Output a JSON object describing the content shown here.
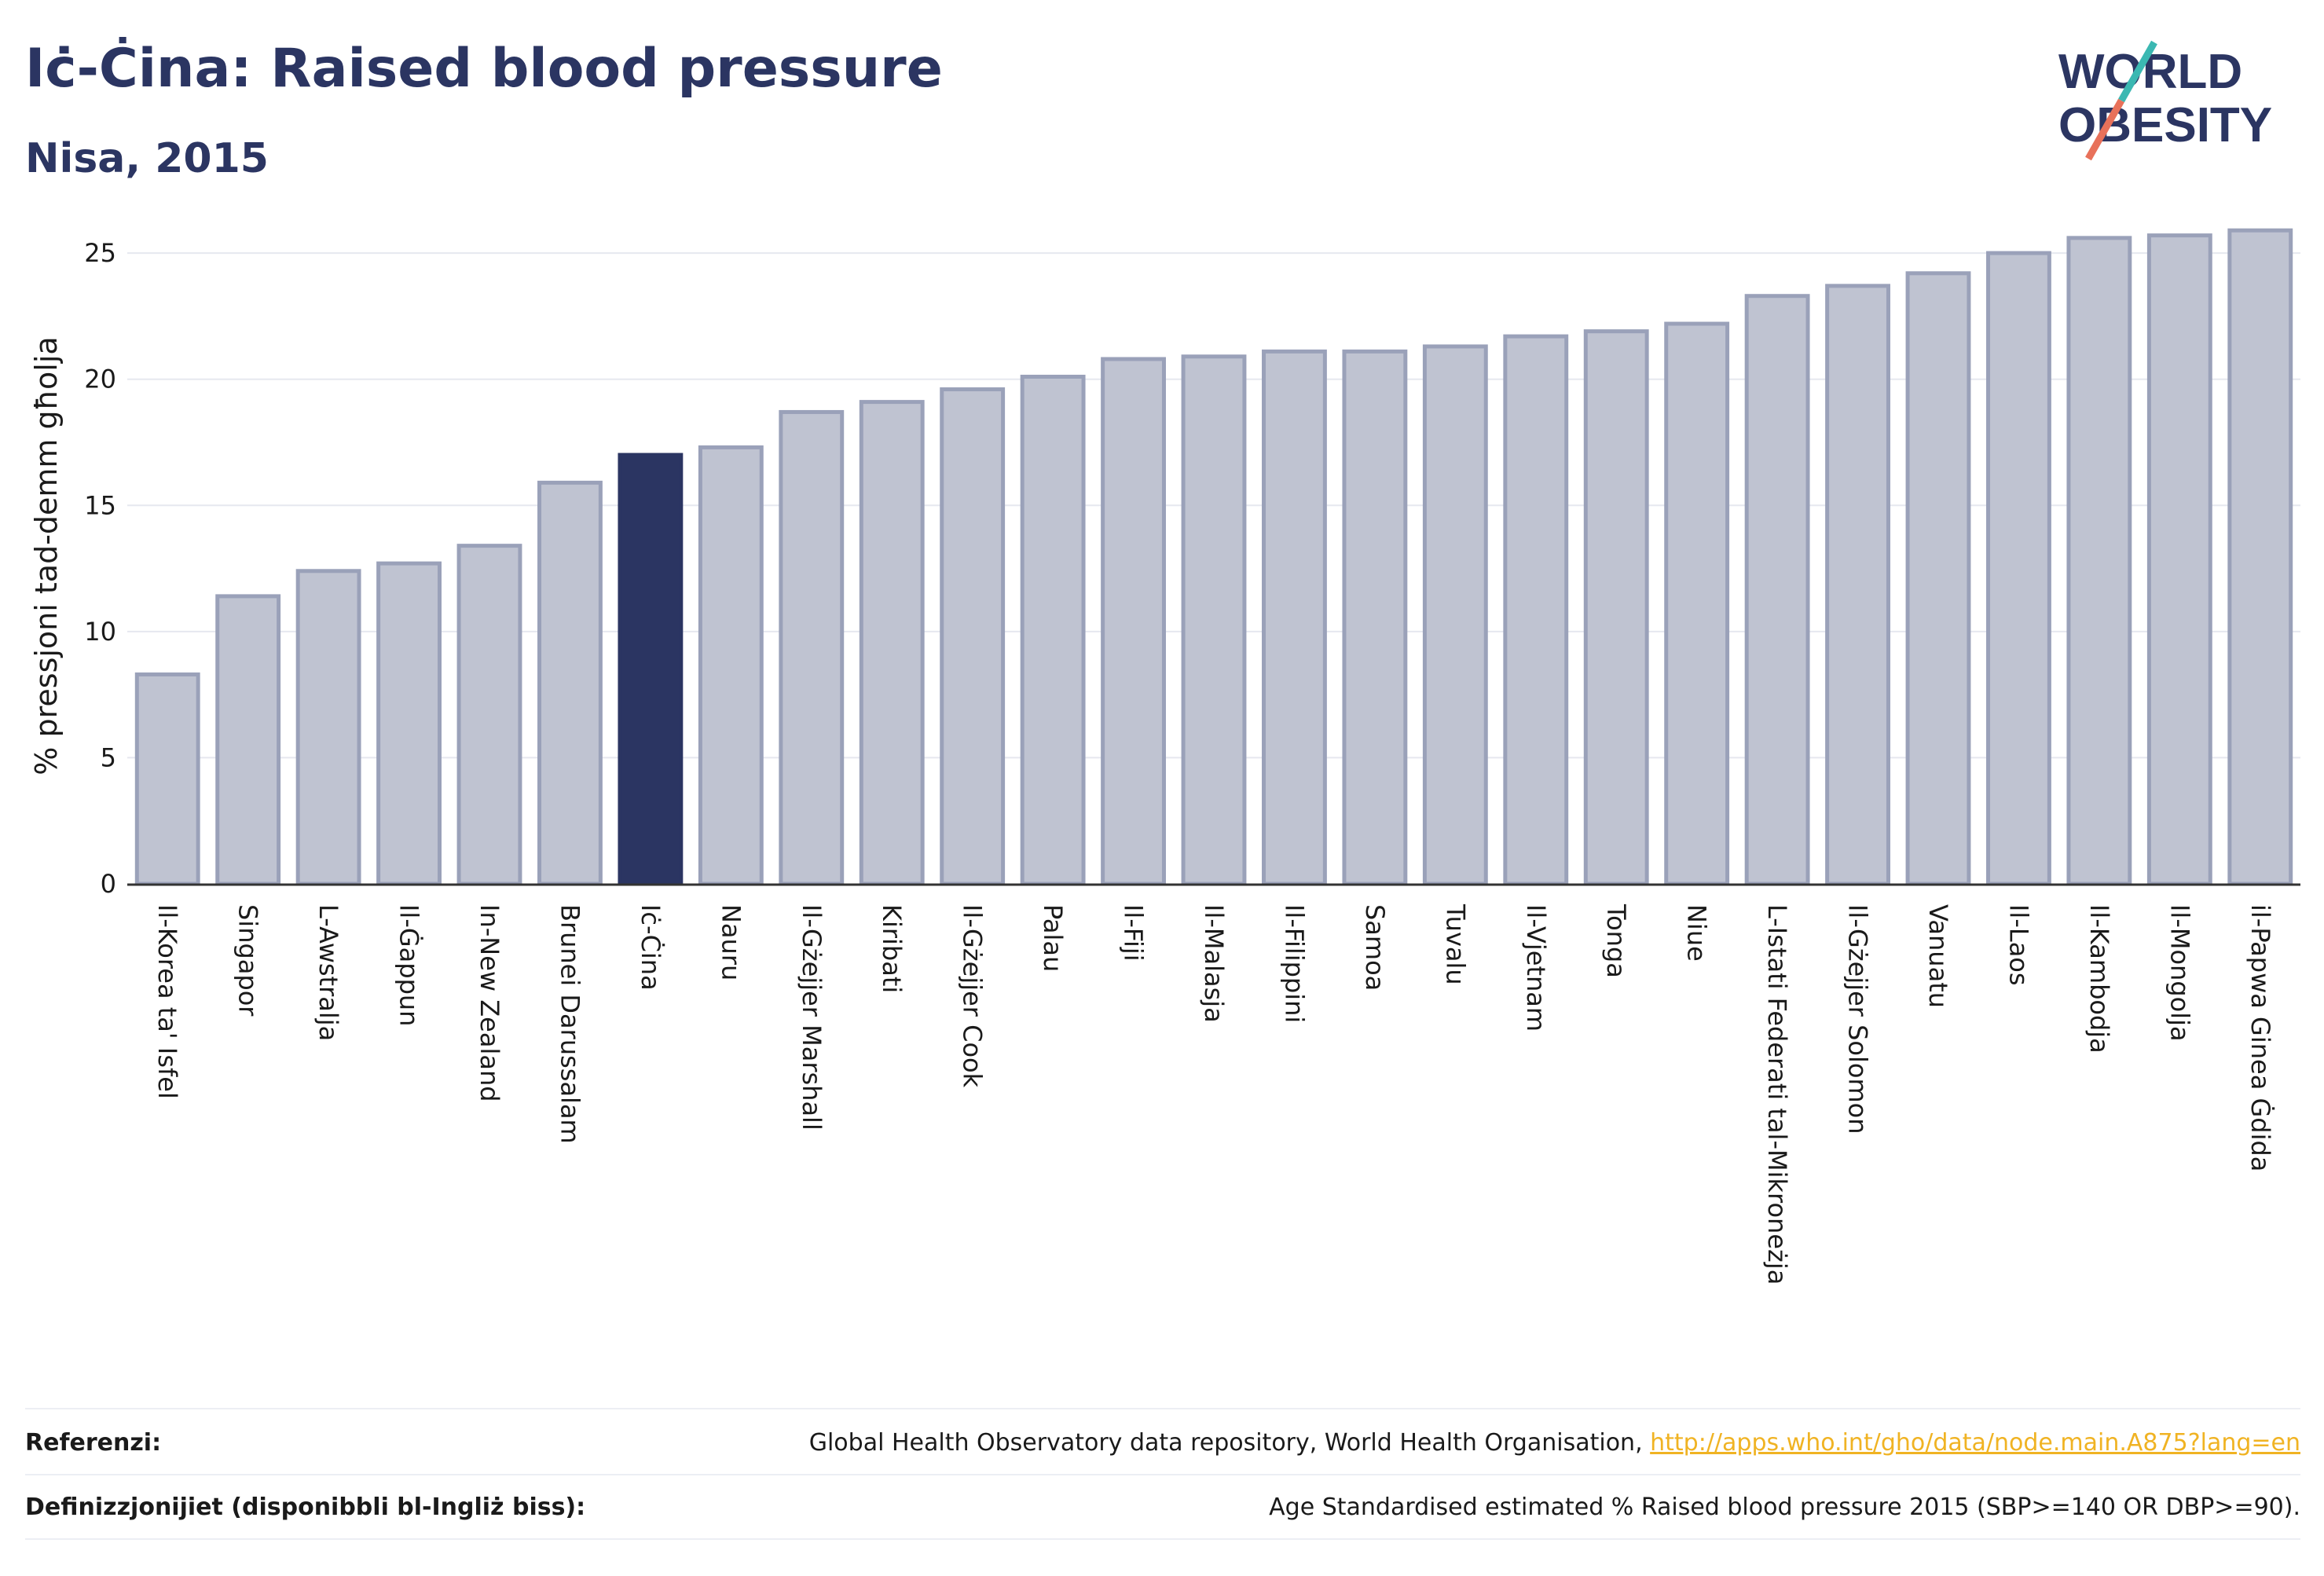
{
  "header": {
    "title": "Iċ-Ċina: Raised blood pressure",
    "subtitle": "Nisa, 2015"
  },
  "logo": {
    "line1": "WORLD",
    "line2": "OBESITY"
  },
  "colors": {
    "highlight": "#2b3562",
    "bar": "#bfc3d1",
    "bar_stroke": "#9aa1b9",
    "accent_teal": "#3bb8b2",
    "accent_coral": "#e8715a",
    "link": "#f0b323"
  },
  "chart_data": {
    "type": "bar",
    "ylabel": "% pressjoni tad-demm għolja",
    "ylim": [
      0,
      26
    ],
    "yticks": [
      0,
      5,
      10,
      15,
      20,
      25
    ],
    "grid": true,
    "highlight_category": "Iċ-Ċina",
    "categories": [
      "Il-Korea ta' Isfel",
      "Singapor",
      "L-Awstralja",
      "Il-Ġappun",
      "In-New Zealand",
      "Brunei Darussalam",
      "Iċ-Ċina",
      "Nauru",
      "Il-Gżejjer Marshall",
      "Kiribati",
      "Il-Gżejjer Cook",
      "Palau",
      "Il-Fiji",
      "Il-Malasja",
      "Il-Filippini",
      "Samoa",
      "Tuvalu",
      "Il-Vjetnam",
      "Tonga",
      "Niue",
      "L-Istati Federati tal-Mikroneżja",
      "Il-Gżejjer Solomon",
      "Vanuatu",
      "Il-Laos",
      "Il-Kambodja",
      "Il-Mongolja",
      "il-Papwa Ginea Ġdida"
    ],
    "values": [
      8.3,
      11.4,
      12.4,
      12.7,
      13.4,
      15.9,
      17.0,
      17.3,
      18.7,
      19.1,
      19.6,
      20.1,
      20.8,
      20.9,
      21.1,
      21.1,
      21.3,
      21.7,
      21.9,
      22.2,
      23.3,
      23.7,
      24.2,
      25.0,
      25.6,
      25.7,
      25.9
    ]
  },
  "footer": {
    "references_label": "Referenzi:",
    "references_text": "Global Health Observatory data repository, World Health Organisation, ",
    "references_link": "http://apps.who.int/gho/data/node.main.A875?lang=en",
    "definitions_label": "Definizzjonijiet (disponibbli bl-Ingliż biss):",
    "definitions_text": "Age Standardised estimated % Raised blood pressure 2015 (SBP>=140 OR DBP>=90)."
  }
}
